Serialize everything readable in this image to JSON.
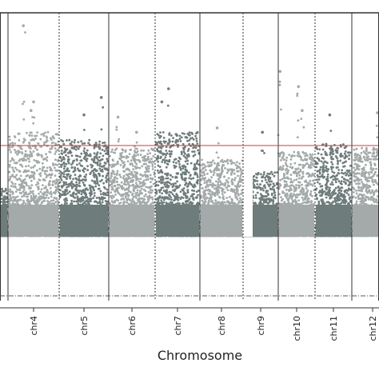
{
  "chart_data": {
    "type": "scatter",
    "subtype": "manhattan",
    "xlabel": "Chromosome",
    "ylabel": "",
    "title": "",
    "chromosomes": [
      "chr4",
      "chr5",
      "chr6",
      "chr7",
      "chr8",
      "chr9",
      "chr10",
      "chr11",
      "chr12"
    ],
    "colors": {
      "light": "#a3aaa9",
      "dark": "#6e7c7b",
      "threshold": "#cc3b3b",
      "divider": "#333333",
      "frame": "#333333"
    },
    "threshold_line": "present",
    "grid": false,
    "legend": "none",
    "peaks": [
      {
        "chromosome": "chr4",
        "notable_points": [
          {
            "x": 0.3,
            "y": 0.97
          },
          {
            "x": 0.5,
            "y": 0.62
          },
          {
            "x": 0.45,
            "y": 0.58
          }
        ]
      },
      {
        "chromosome": "chr5",
        "notable_points": [
          {
            "x": 0.85,
            "y": 0.64
          },
          {
            "x": 0.5,
            "y": 0.56
          }
        ]
      },
      {
        "chromosome": "chr6",
        "notable_points": [
          {
            "x": 0.2,
            "y": 0.55
          },
          {
            "x": 0.6,
            "y": 0.48
          }
        ]
      },
      {
        "chromosome": "chr7",
        "notable_points": [
          {
            "x": 0.3,
            "y": 0.68
          },
          {
            "x": 0.15,
            "y": 0.62
          }
        ]
      },
      {
        "chromosome": "chr8",
        "notable_points": [
          {
            "x": 0.4,
            "y": 0.5
          }
        ]
      },
      {
        "chromosome": "chr9",
        "notable_points": [
          {
            "x": 0.55,
            "y": 0.48
          }
        ]
      },
      {
        "chromosome": "chr10",
        "notable_points": [
          {
            "x": 0.05,
            "y": 0.76
          },
          {
            "x": 0.55,
            "y": 0.69
          },
          {
            "x": 0.65,
            "y": 0.58
          }
        ]
      },
      {
        "chromosome": "chr11",
        "notable_points": [
          {
            "x": 0.4,
            "y": 0.56
          }
        ]
      },
      {
        "chromosome": "chr12",
        "notable_points": [
          {
            "x": 0.4,
            "y": 0.57
          },
          {
            "x": 0.7,
            "y": 0.5
          }
        ]
      }
    ]
  }
}
